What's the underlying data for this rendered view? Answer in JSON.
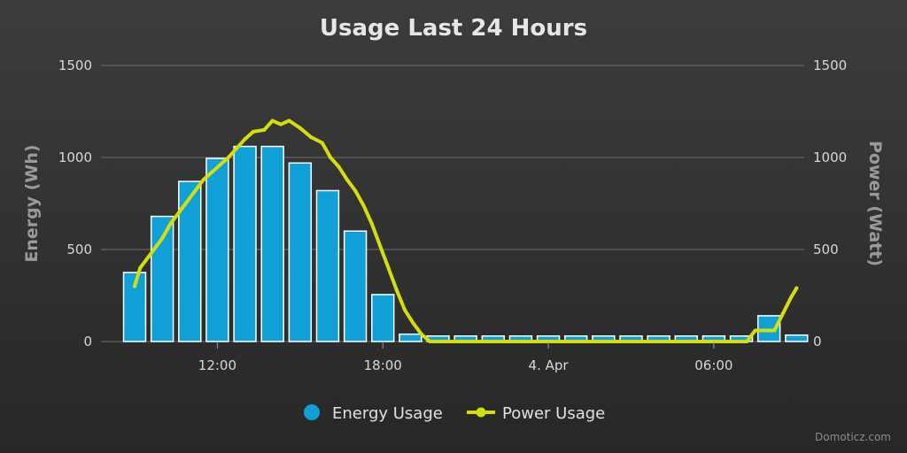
{
  "chart_data": {
    "type": "bar",
    "title": "Usage Last 24 Hours",
    "y_left_label": "Energy (Wh)",
    "y_right_label": "Power (Watt)",
    "ylim": [
      0,
      1500
    ],
    "y_ticks": [
      "0",
      "500",
      "1000",
      "1500"
    ],
    "y_tick_values": [
      0,
      500,
      1000,
      1500
    ],
    "x_ticks": [
      {
        "label": "12:00",
        "x": 3
      },
      {
        "label": "18:00",
        "x": 9
      },
      {
        "label": "4. Apr",
        "x": 15
      },
      {
        "label": "06:00",
        "x": 21
      }
    ],
    "series": [
      {
        "name": "Energy Usage",
        "type": "bar",
        "color": "#0fa0d8",
        "values": [
          375,
          680,
          870,
          995,
          1060,
          1060,
          970,
          820,
          600,
          255,
          40,
          30,
          30,
          30,
          30,
          30,
          30,
          30,
          30,
          30,
          30,
          30,
          30,
          140,
          35
        ]
      },
      {
        "name": "Power Usage",
        "type": "line",
        "color": "#d4df0a",
        "points": [
          [
            0.0,
            300
          ],
          [
            0.2,
            400
          ],
          [
            0.5,
            460
          ],
          [
            0.8,
            520
          ],
          [
            1.0,
            560
          ],
          [
            1.3,
            640
          ],
          [
            1.6,
            700
          ],
          [
            1.9,
            760
          ],
          [
            2.2,
            820
          ],
          [
            2.5,
            880
          ],
          [
            2.8,
            920
          ],
          [
            3.1,
            960
          ],
          [
            3.4,
            1000
          ],
          [
            3.7,
            1050
          ],
          [
            4.0,
            1100
          ],
          [
            4.3,
            1140
          ],
          [
            4.7,
            1150
          ],
          [
            5.0,
            1200
          ],
          [
            5.3,
            1180
          ],
          [
            5.6,
            1200
          ],
          [
            6.0,
            1160
          ],
          [
            6.4,
            1110
          ],
          [
            6.8,
            1080
          ],
          [
            7.1,
            1000
          ],
          [
            7.4,
            950
          ],
          [
            7.7,
            880
          ],
          [
            8.0,
            820
          ],
          [
            8.3,
            740
          ],
          [
            8.6,
            640
          ],
          [
            8.9,
            520
          ],
          [
            9.2,
            400
          ],
          [
            9.5,
            280
          ],
          [
            9.8,
            170
          ],
          [
            10.1,
            100
          ],
          [
            10.4,
            40
          ],
          [
            10.7,
            0
          ],
          [
            22.2,
            0
          ],
          [
            22.5,
            60
          ],
          [
            22.8,
            60
          ],
          [
            23.2,
            60
          ],
          [
            23.5,
            150
          ],
          [
            23.8,
            240
          ],
          [
            24.0,
            290
          ]
        ]
      }
    ],
    "legend_position": "bottom-center",
    "grid": true
  },
  "credit": "Domoticz.com"
}
